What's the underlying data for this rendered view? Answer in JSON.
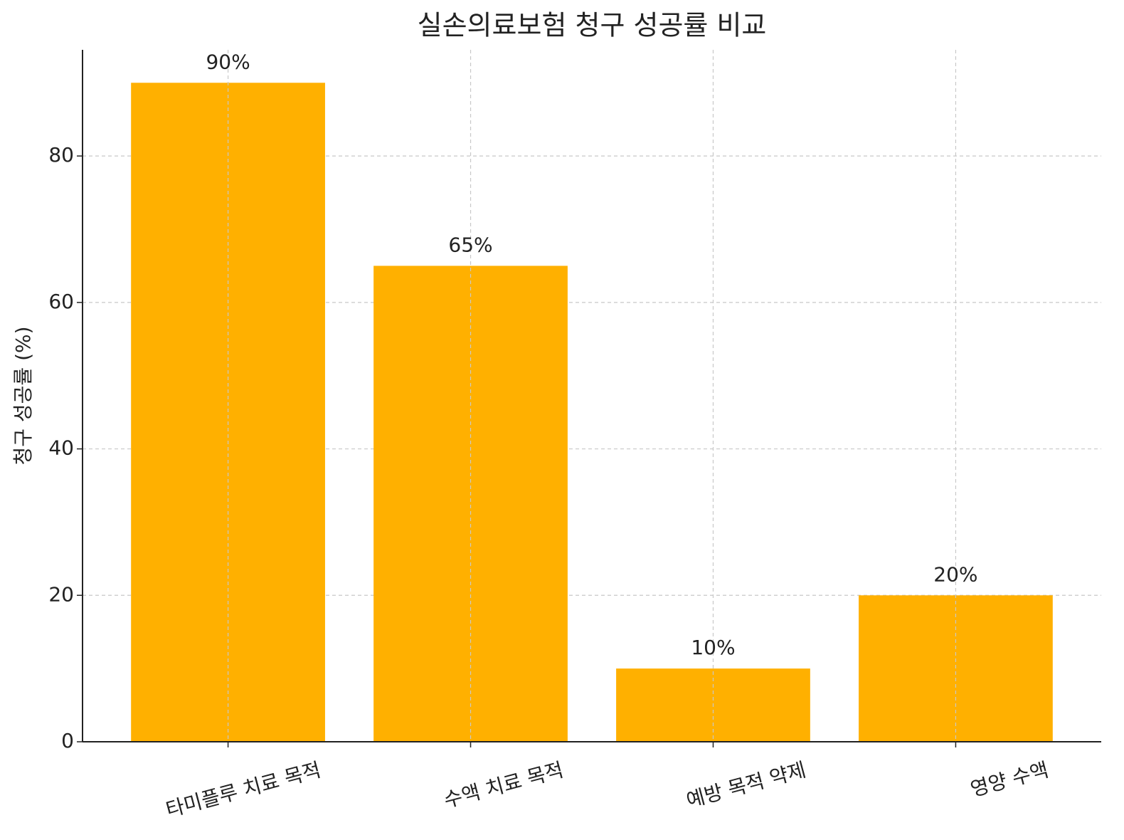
{
  "chart_data": {
    "type": "bar",
    "title": "실손의료보험 청구 성공률 비교",
    "y_label": "청구 성공률 (%)",
    "categories": [
      "타미플루 치료 목적",
      "수액 치료 목적",
      "예방 목적 약제",
      "영양 수액"
    ],
    "values": [
      90,
      65,
      10,
      20
    ],
    "value_labels": [
      "90%",
      "65%",
      "10%",
      "20%"
    ],
    "color": "#ffb000",
    "ylim": [
      0,
      94.5
    ],
    "yticks": [
      0,
      20,
      40,
      60,
      80
    ],
    "grid": true
  }
}
